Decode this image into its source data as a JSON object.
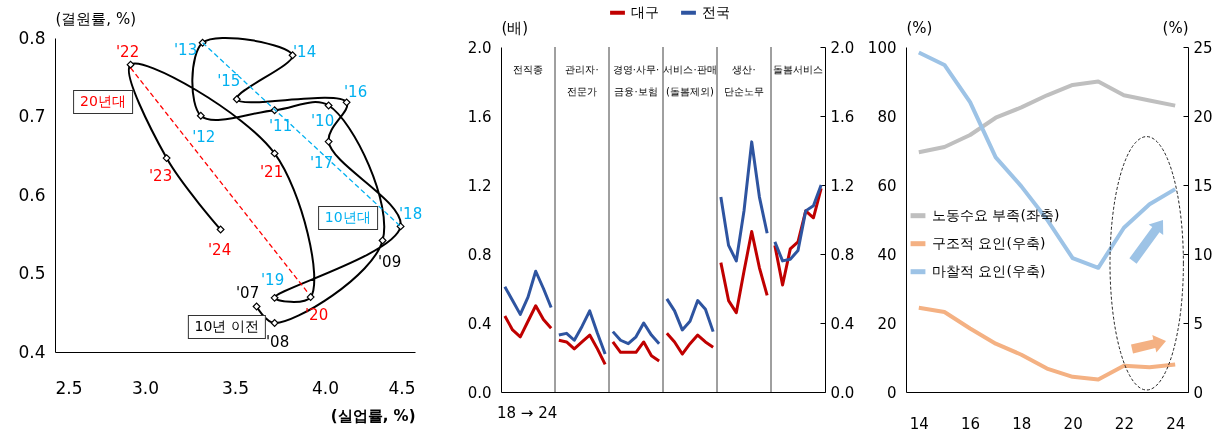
{
  "chart_data": [
    {
      "type": "line",
      "xlabel": "(실업률, %)",
      "ylabel": "(결원률, %)",
      "xlim": [
        2.5,
        4.5
      ],
      "ylim": [
        0.4,
        0.8
      ],
      "xticks": [
        2.5,
        {
          "value": 3,
          "label": "3.0"
        },
        3.5,
        {
          "value": 4,
          "label": "4.0"
        },
        4.5
      ],
      "yticks": [
        0.4,
        0.5,
        0.6,
        0.7,
        0.8
      ],
      "series": [
        {
          "color": "#000000",
          "marker": "diamond",
          "x": [
            3.62,
            3.72,
            4.32,
            4.02,
            3.72,
            3.31,
            3.32,
            3.82,
            3.51,
            4.12,
            4.02,
            4.42,
            3.72,
            3.92,
            3.72,
            2.92,
            3.12,
            3.42
          ],
          "values": [
            0.458,
            0.437,
            0.542,
            0.714,
            0.708,
            0.701,
            0.794,
            0.778,
            0.722,
            0.718,
            0.668,
            0.56,
            0.469,
            0.47,
            0.653,
            0.766,
            0.647,
            0.556
          ],
          "colors": [
            "#000000",
            "#000000",
            "#000000",
            "#00b0f0",
            "#00b0f0",
            "#00b0f0",
            "#00b0f0",
            "#00b0f0",
            "#00b0f0",
            "#00b0f0",
            "#00b0f0",
            "#00b0f0",
            "#00b0f0",
            "#ff0000",
            "#ff0000",
            "#ff0000",
            "#ff0000",
            "#ff0000"
          ]
        },
        {
          "color": "#00b0f0",
          "line_style": "dashed",
          "x": [
            3.32,
            4.42
          ],
          "values": [
            0.794,
            0.56
          ]
        },
        {
          "color": "#ff0000",
          "line_style": "dashed",
          "x": [
            2.92,
            3.9
          ],
          "values": [
            0.762,
            0.477
          ]
        }
      ],
      "annotations": [
        "10년 이전",
        "10년대",
        "20년대",
        {
          "text": "'07",
          "x": 3.62,
          "y": 0.458
        },
        {
          "text": "'08",
          "x": 3.72,
          "y": 0.437
        },
        {
          "text": "'09",
          "x": 4.32,
          "y": 0.542
        },
        {
          "text": "'10",
          "x": 4.02,
          "y": 0.714
        },
        {
          "text": "'11",
          "x": 3.72,
          "y": 0.708
        },
        {
          "text": "'12",
          "x": 3.31,
          "y": 0.701
        },
        {
          "text": "'13",
          "x": 3.32,
          "y": 0.794
        },
        {
          "text": "'14",
          "x": 3.82,
          "y": 0.778
        },
        {
          "text": "'15",
          "x": 3.51,
          "y": 0.722
        },
        {
          "text": "'16",
          "x": 4.12,
          "y": 0.718
        },
        {
          "text": "'17",
          "x": 4.02,
          "y": 0.668
        },
        {
          "text": "'18",
          "x": 4.42,
          "y": 0.56
        },
        {
          "text": "'19",
          "x": 3.72,
          "y": 0.469
        },
        {
          "text": "'20",
          "x": 3.92,
          "y": 0.47
        },
        {
          "text": "'21",
          "x": 3.72,
          "y": 0.653
        },
        {
          "text": "'22",
          "x": 2.92,
          "y": 0.766
        },
        {
          "text": "'23",
          "x": 3.12,
          "y": 0.647
        },
        {
          "text": "'24",
          "x": 3.42,
          "y": 0.556
        }
      ]
    },
    {
      "type": "line",
      "ylabel": "(배)",
      "ylim": [
        0,
        2
      ],
      "yticks": [
        {
          "value": 0,
          "label": "0.0"
        },
        0.4,
        0.8,
        1.2,
        1.6,
        {
          "value": 2,
          "label": "2.0"
        }
      ],
      "y2lim": [
        0,
        2
      ],
      "y2ticks": [
        {
          "value": 0,
          "label": "0.0"
        },
        0.4,
        0.8,
        1.2,
        1.6,
        {
          "value": 2,
          "label": "2.0"
        }
      ],
      "legend": "top",
      "categories": [
        null,
        null,
        null,
        null,
        null,
        null,
        null,
        null,
        null,
        null,
        null,
        null,
        null,
        null,
        null,
        null,
        null,
        null,
        null,
        null,
        null,
        null,
        null,
        null,
        null,
        null,
        null,
        null,
        null,
        null,
        null,
        null,
        null,
        null,
        null,
        null,
        null,
        null,
        null,
        null,
        null,
        null
      ],
      "series": [
        {
          "name": "대구",
          "color": "#c00000",
          "values": [
            0.44,
            0.36,
            0.32,
            0.41,
            0.5,
            0.42,
            0.37,
            null,
            null,
            null,
            null,
            null,
            null,
            null,
            null,
            null,
            null,
            null,
            null,
            null,
            null,
            null,
            null,
            null,
            null,
            null,
            null,
            null,
            null,
            null,
            null,
            null,
            null,
            null,
            null,
            null,
            null,
            null,
            null,
            null,
            null,
            null
          ]
        },
        {
          "name": "전국",
          "color": "#2e54a0",
          "values": [
            0.61,
            0.53,
            0.45,
            0.55,
            0.7,
            0.6,
            0.49,
            null,
            null,
            null,
            null,
            null,
            null,
            null,
            null,
            null,
            null,
            null,
            null,
            null,
            null,
            null,
            null,
            null,
            null,
            null,
            null,
            null,
            null,
            null,
            null,
            null,
            null,
            null,
            null,
            null,
            null,
            null,
            null,
            null,
            null,
            null
          ]
        },
        {
          "color": "#c00000",
          "values": [
            null,
            null,
            null,
            null,
            null,
            null,
            null,
            0.3,
            0.29,
            0.25,
            0.29,
            0.33,
            0.25,
            0.16,
            null,
            null,
            null,
            null,
            null,
            null,
            null,
            null,
            null,
            null,
            null,
            null,
            null,
            null,
            null,
            null,
            null,
            null,
            null,
            null,
            null,
            null,
            null,
            null,
            null,
            null,
            null,
            null
          ]
        },
        {
          "color": "#2e54a0",
          "values": [
            null,
            null,
            null,
            null,
            null,
            null,
            null,
            0.33,
            0.34,
            0.3,
            0.38,
            0.47,
            0.34,
            0.22,
            null,
            null,
            null,
            null,
            null,
            null,
            null,
            null,
            null,
            null,
            null,
            null,
            null,
            null,
            null,
            null,
            null,
            null,
            null,
            null,
            null,
            null,
            null,
            null,
            null,
            null,
            null,
            null
          ]
        },
        {
          "color": "#c00000",
          "values": [
            null,
            null,
            null,
            null,
            null,
            null,
            null,
            null,
            null,
            null,
            null,
            null,
            null,
            null,
            0.29,
            0.23,
            0.23,
            0.23,
            0.29,
            0.21,
            0.18,
            null,
            null,
            null,
            null,
            null,
            null,
            null,
            null,
            null,
            null,
            null,
            null,
            null,
            null,
            null,
            null,
            null,
            null,
            null,
            null,
            null
          ]
        },
        {
          "color": "#2e54a0",
          "values": [
            null,
            null,
            null,
            null,
            null,
            null,
            null,
            null,
            null,
            null,
            null,
            null,
            null,
            null,
            0.35,
            0.3,
            0.28,
            0.32,
            0.4,
            0.33,
            0.28,
            null,
            null,
            null,
            null,
            null,
            null,
            null,
            null,
            null,
            null,
            null,
            null,
            null,
            null,
            null,
            null,
            null,
            null,
            null,
            null,
            null
          ]
        },
        {
          "color": "#c00000",
          "values": [
            null,
            null,
            null,
            null,
            null,
            null,
            null,
            null,
            null,
            null,
            null,
            null,
            null,
            null,
            null,
            null,
            null,
            null,
            null,
            null,
            null,
            0.34,
            0.29,
            0.22,
            0.28,
            0.33,
            0.29,
            0.26,
            null,
            null,
            null,
            null,
            null,
            null,
            null,
            null,
            null,
            null,
            null,
            null,
            null,
            null
          ]
        },
        {
          "color": "#2e54a0",
          "values": [
            null,
            null,
            null,
            null,
            null,
            null,
            null,
            null,
            null,
            null,
            null,
            null,
            null,
            null,
            null,
            null,
            null,
            null,
            null,
            null,
            null,
            0.54,
            0.47,
            0.36,
            0.41,
            0.53,
            0.48,
            0.35,
            null,
            null,
            null,
            null,
            null,
            null,
            null,
            null,
            null,
            null,
            null,
            null,
            null,
            null
          ]
        },
        {
          "color": "#c00000",
          "values": [
            null,
            null,
            null,
            null,
            null,
            null,
            null,
            null,
            null,
            null,
            null,
            null,
            null,
            null,
            null,
            null,
            null,
            null,
            null,
            null,
            null,
            null,
            null,
            null,
            null,
            null,
            null,
            null,
            0.75,
            0.53,
            0.46,
            0.7,
            0.93,
            0.72,
            0.56,
            null,
            null,
            null,
            null,
            null,
            null,
            null
          ]
        },
        {
          "color": "#2e54a0",
          "values": [
            null,
            null,
            null,
            null,
            null,
            null,
            null,
            null,
            null,
            null,
            null,
            null,
            null,
            null,
            null,
            null,
            null,
            null,
            null,
            null,
            null,
            null,
            null,
            null,
            null,
            null,
            null,
            null,
            1.13,
            0.85,
            0.76,
            1.05,
            1.45,
            1.13,
            0.92,
            null,
            null,
            null,
            null,
            null,
            null,
            null
          ]
        },
        {
          "color": "#c00000",
          "values": [
            null,
            null,
            null,
            null,
            null,
            null,
            null,
            null,
            null,
            null,
            null,
            null,
            null,
            null,
            null,
            null,
            null,
            null,
            null,
            null,
            null,
            null,
            null,
            null,
            null,
            null,
            null,
            null,
            null,
            null,
            null,
            null,
            null,
            null,
            null,
            0.85,
            0.62,
            0.83,
            0.87,
            1.05,
            1.01,
            1.18
          ]
        },
        {
          "color": "#2e54a0",
          "values": [
            null,
            null,
            null,
            null,
            null,
            null,
            null,
            null,
            null,
            null,
            null,
            null,
            null,
            null,
            null,
            null,
            null,
            null,
            null,
            null,
            null,
            null,
            null,
            null,
            null,
            null,
            null,
            null,
            null,
            null,
            null,
            null,
            null,
            null,
            null,
            0.87,
            0.76,
            0.77,
            0.82,
            1.05,
            1.08,
            1.2
          ]
        }
      ],
      "annotations": [
        "전직종",
        "관리자·전문가",
        "경영·사무·금융·보험",
        "서비스·판매(돌봄제외)",
        "생산·단순노무",
        "돌봄서비스",
        "18 → 24"
      ]
    },
    {
      "type": "line",
      "ylabel": "(%)",
      "y2label": "(%)",
      "xlim": [
        13.5,
        24.5
      ],
      "xticks": [
        14,
        16,
        18,
        20,
        22,
        24
      ],
      "ylim": [
        0,
        100
      ],
      "yticks": [
        0,
        20,
        40,
        60,
        80,
        100
      ],
      "y2lim": [
        0,
        25
      ],
      "y2ticks": [
        0,
        5,
        10,
        15,
        20,
        25
      ],
      "legend": "left",
      "x": [
        14,
        15,
        16,
        17,
        18,
        19,
        20,
        21,
        22,
        23,
        24
      ],
      "series": [
        {
          "name": "노동수요 부족(좌축)",
          "color": "#bfbfbf",
          "values": [
            69.5,
            71,
            74.5,
            79.5,
            82.5,
            86,
            89,
            90,
            86,
            84.5,
            83
          ]
        },
        {
          "name": "구조적 요인(우축)",
          "color": "#f4b183",
          "axis": "y2",
          "values": [
            6.1,
            5.8,
            4.6,
            3.5,
            2.7,
            1.7,
            1.1,
            0.9,
            1.9,
            1.8,
            2.0
          ]
        },
        {
          "name": "마찰적 요인(우축)",
          "color": "#9dc3e6",
          "axis": "y2",
          "values": [
            24.6,
            23.7,
            21.0,
            17.0,
            14.9,
            12.5,
            9.7,
            9.0,
            11.9,
            13.6,
            14.7
          ]
        }
      ]
    }
  ]
}
